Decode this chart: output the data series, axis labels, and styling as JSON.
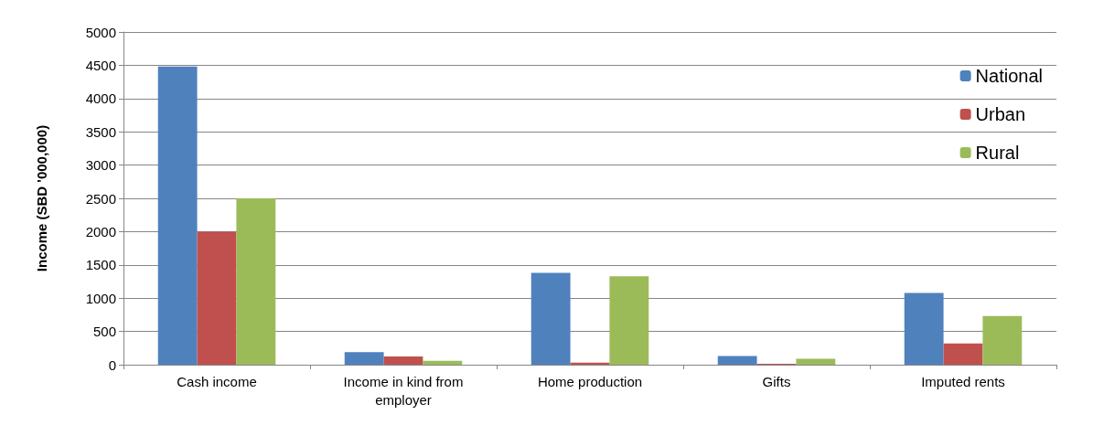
{
  "chart_data": {
    "type": "bar",
    "ylabel": "Income (SBD '000,000)",
    "categories": [
      "Cash income",
      "Income in kind from employer",
      "Home production",
      "Gifts",
      "Imputed rents"
    ],
    "series": [
      {
        "name": "National",
        "color": "#4f81bd",
        "values": [
          4480,
          190,
          1380,
          130,
          1080
        ]
      },
      {
        "name": "Urban",
        "color": "#c0504d",
        "values": [
          2000,
          125,
          30,
          15,
          320
        ]
      },
      {
        "name": "Rural",
        "color": "#9bbb59",
        "values": [
          2500,
          60,
          1330,
          90,
          730
        ]
      }
    ],
    "ylim": [
      0,
      5000
    ],
    "yticks": [
      0,
      500,
      1000,
      1500,
      2000,
      2500,
      3000,
      3500,
      4000,
      4500,
      5000
    ],
    "grid": "y",
    "legend": "top right"
  }
}
